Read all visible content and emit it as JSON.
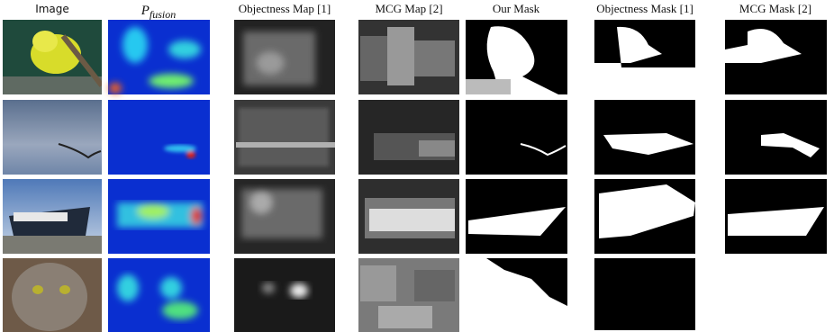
{
  "columns": {
    "image": "Image",
    "fusion": {
      "symbol": "P",
      "subscript": "fusion"
    },
    "objectness_map": "Objectness Map [1]",
    "mcg_map": "MCG Map [2]",
    "our_mask": "Our Mask",
    "objectness_mask": "Objectness Mask [1]",
    "mcg_mask": "MCG Mask [2]"
  }
}
